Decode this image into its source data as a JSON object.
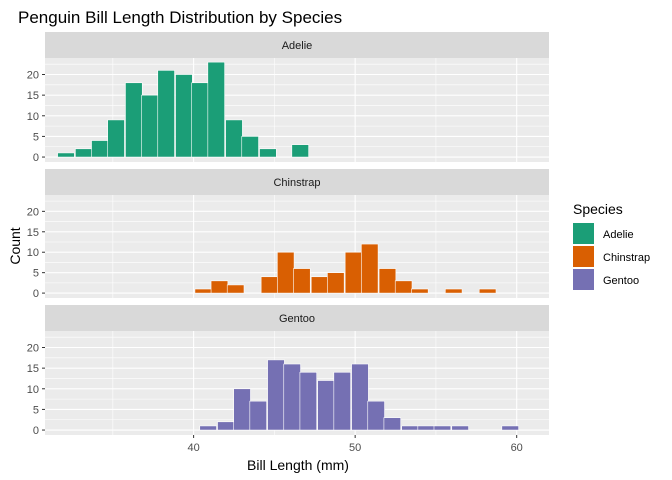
{
  "chart_data": {
    "type": "bar",
    "title": "Penguin Bill Length Distribution by Species",
    "xlabel": "Bill Length (mm)",
    "ylabel": "Count",
    "xlim": [
      30.8,
      62.0
    ],
    "ylim": [
      -1.2,
      24.0
    ],
    "x_ticks": [
      40,
      50,
      60
    ],
    "y_ticks": [
      0,
      5,
      10,
      15,
      20
    ],
    "bin_width": 1.04,
    "grid": true,
    "legend": {
      "title": "Species",
      "position": "right"
    },
    "series": [
      {
        "name": "Adelie",
        "color": "#1B9E77",
        "bins": [
          {
            "x": 32.1,
            "count": 1
          },
          {
            "x": 33.2,
            "count": 2
          },
          {
            "x": 34.2,
            "count": 4
          },
          {
            "x": 35.2,
            "count": 9
          },
          {
            "x": 36.3,
            "count": 18
          },
          {
            "x": 37.3,
            "count": 15
          },
          {
            "x": 38.3,
            "count": 21
          },
          {
            "x": 39.4,
            "count": 20
          },
          {
            "x": 40.4,
            "count": 18
          },
          {
            "x": 41.4,
            "count": 23
          },
          {
            "x": 42.5,
            "count": 9
          },
          {
            "x": 43.5,
            "count": 5
          },
          {
            "x": 44.6,
            "count": 2
          },
          {
            "x": 46.6,
            "count": 3
          }
        ]
      },
      {
        "name": "Chinstrap",
        "color": "#D95F02",
        "bins": [
          {
            "x": 40.6,
            "count": 1
          },
          {
            "x": 41.6,
            "count": 3
          },
          {
            "x": 42.6,
            "count": 2
          },
          {
            "x": 44.7,
            "count": 4
          },
          {
            "x": 45.7,
            "count": 10
          },
          {
            "x": 46.7,
            "count": 6
          },
          {
            "x": 47.8,
            "count": 4
          },
          {
            "x": 48.8,
            "count": 5
          },
          {
            "x": 49.9,
            "count": 10
          },
          {
            "x": 50.9,
            "count": 12
          },
          {
            "x": 52.0,
            "count": 6
          },
          {
            "x": 53.0,
            "count": 3
          },
          {
            "x": 54.0,
            "count": 1
          },
          {
            "x": 55.1,
            "count": 0
          },
          {
            "x": 56.1,
            "count": 1
          },
          {
            "x": 58.2,
            "count": 1
          }
        ]
      },
      {
        "name": "Gentoo",
        "color": "#7570B3",
        "bins": [
          {
            "x": 40.9,
            "count": 1
          },
          {
            "x": 42.0,
            "count": 2
          },
          {
            "x": 43.0,
            "count": 10
          },
          {
            "x": 44.0,
            "count": 7
          },
          {
            "x": 45.1,
            "count": 17
          },
          {
            "x": 46.1,
            "count": 16
          },
          {
            "x": 47.1,
            "count": 14
          },
          {
            "x": 48.2,
            "count": 12
          },
          {
            "x": 49.2,
            "count": 14
          },
          {
            "x": 50.3,
            "count": 16
          },
          {
            "x": 51.3,
            "count": 7
          },
          {
            "x": 52.3,
            "count": 3
          },
          {
            "x": 53.4,
            "count": 1
          },
          {
            "x": 54.4,
            "count": 1
          },
          {
            "x": 55.4,
            "count": 1
          },
          {
            "x": 56.5,
            "count": 1
          },
          {
            "x": 59.6,
            "count": 1
          }
        ]
      }
    ]
  }
}
